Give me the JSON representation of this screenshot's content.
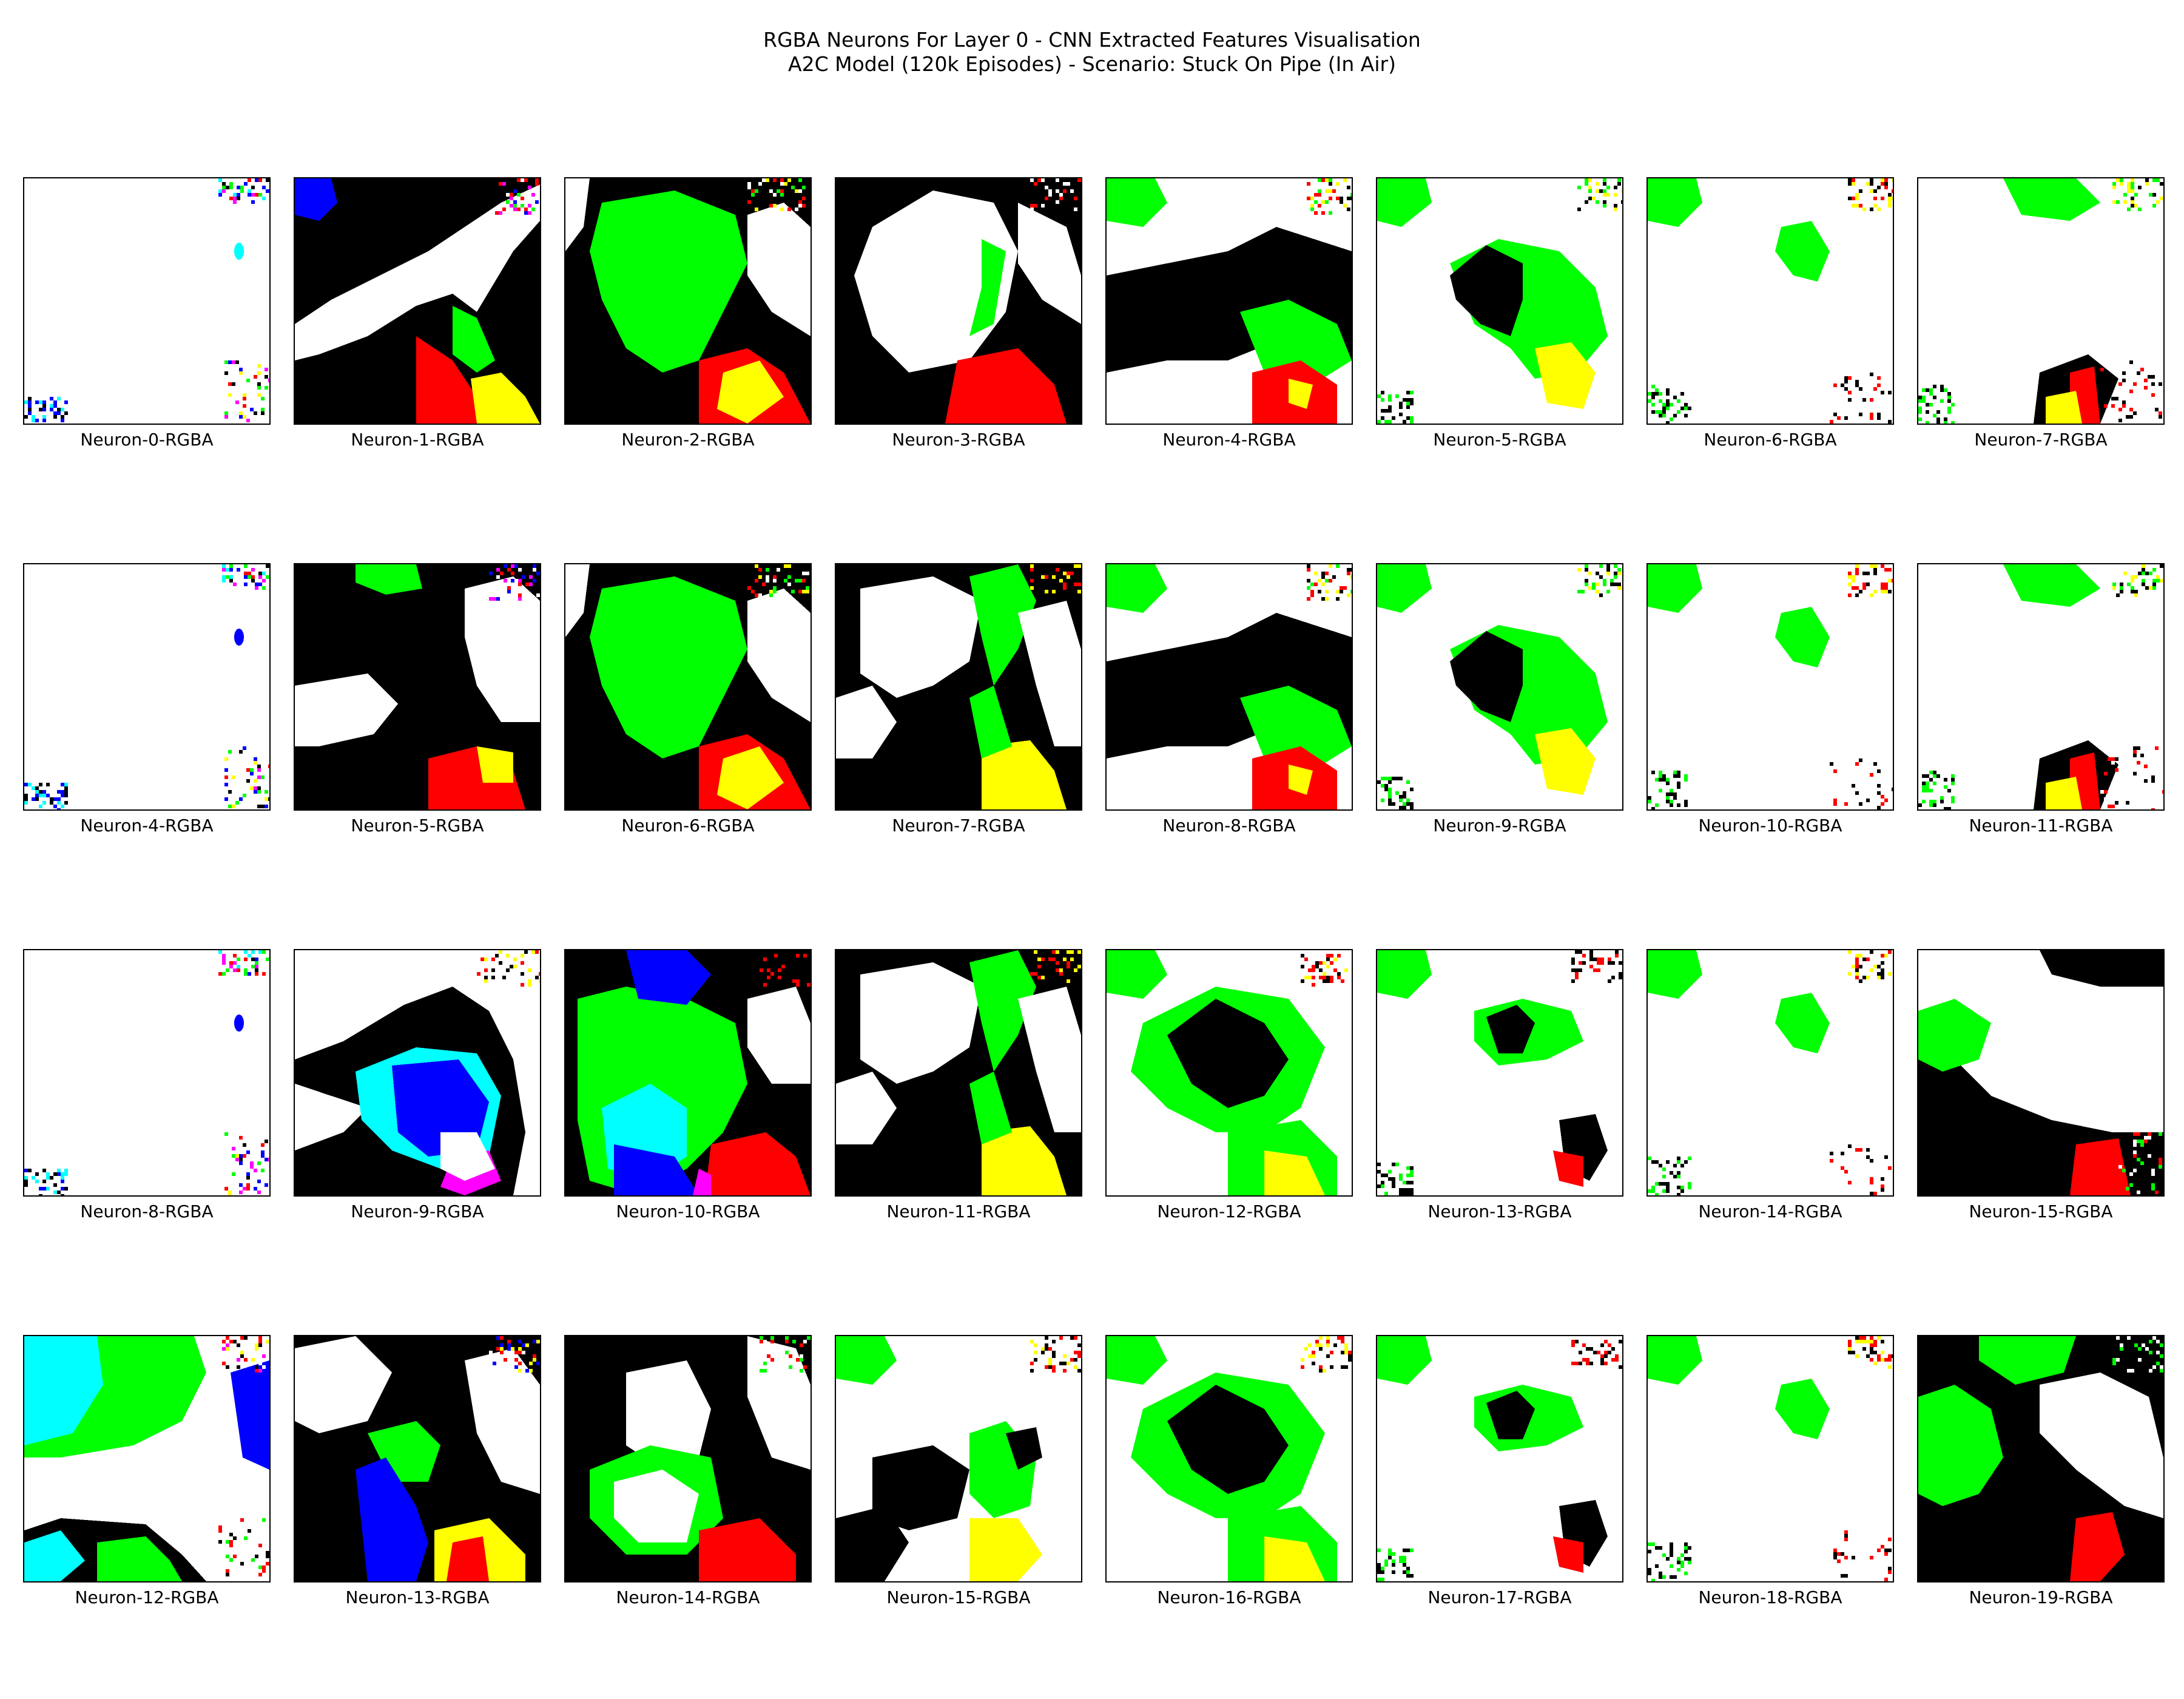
{
  "figure": {
    "title_line1": "RGBA Neurons For Layer 0 - CNN Extracted Features Visualisation",
    "title_line2": "A2C Model (120k Episodes) - Scenario: Stuck On Pipe (In Air)"
  },
  "colors": {
    "white": "#ffffff",
    "black": "#000000",
    "green": "#00ff00",
    "red": "#ff0000",
    "yellow": "#ffff00",
    "blue": "#0000ff",
    "cyan": "#00ffff",
    "magenta": "#ff00ff"
  },
  "panels": [
    {
      "label": "Neuron-0-RGBA",
      "pattern": "sparse-white"
    },
    {
      "label": "Neuron-1-RGBA",
      "pattern": "diagonal-band"
    },
    {
      "label": "Neuron-2-RGBA",
      "pattern": "green-blob"
    },
    {
      "label": "Neuron-3-RGBA",
      "pattern": "white-blob"
    },
    {
      "label": "Neuron-4-RGBA",
      "pattern": "black-band"
    },
    {
      "label": "Neuron-5-RGBA",
      "pattern": "mostly-white-black-center"
    },
    {
      "label": "Neuron-6-RGBA",
      "pattern": "mostly-white"
    },
    {
      "label": "Neuron-7-RGBA",
      "pattern": "mostly-white-bottom-black"
    },
    {
      "label": "Neuron-4-RGBA",
      "pattern": "sparse-white"
    },
    {
      "label": "Neuron-5-RGBA",
      "pattern": "black-white-mix"
    },
    {
      "label": "Neuron-6-RGBA",
      "pattern": "green-blob"
    },
    {
      "label": "Neuron-7-RGBA",
      "pattern": "white-blob-black-frame"
    },
    {
      "label": "Neuron-8-RGBA",
      "pattern": "black-band"
    },
    {
      "label": "Neuron-9-RGBA",
      "pattern": "mostly-white-black-center"
    },
    {
      "label": "Neuron-10-RGBA",
      "pattern": "mostly-white"
    },
    {
      "label": "Neuron-11-RGBA",
      "pattern": "mostly-white-bottom-black"
    },
    {
      "label": "Neuron-8-RGBA",
      "pattern": "sparse-white"
    },
    {
      "label": "Neuron-9-RGBA",
      "pattern": "blue-center"
    },
    {
      "label": "Neuron-10-RGBA",
      "pattern": "green-blue-cyan"
    },
    {
      "label": "Neuron-11-RGBA",
      "pattern": "white-blob-black-frame"
    },
    {
      "label": "Neuron-12-RGBA",
      "pattern": "black-center-green"
    },
    {
      "label": "Neuron-13-RGBA",
      "pattern": "mostly-white-small-black"
    },
    {
      "label": "Neuron-14-RGBA",
      "pattern": "mostly-white"
    },
    {
      "label": "Neuron-15-RGBA",
      "pattern": "black-bottom-left"
    },
    {
      "label": "Neuron-12-RGBA",
      "pattern": "cyan-green-top"
    },
    {
      "label": "Neuron-13-RGBA",
      "pattern": "black-with-blue"
    },
    {
      "label": "Neuron-14-RGBA",
      "pattern": "black-white-top"
    },
    {
      "label": "Neuron-15-RGBA",
      "pattern": "white-black-lower"
    },
    {
      "label": "Neuron-16-RGBA",
      "pattern": "black-center-green"
    },
    {
      "label": "Neuron-17-RGBA",
      "pattern": "mostly-white-small-black"
    },
    {
      "label": "Neuron-18-RGBA",
      "pattern": "mostly-white"
    },
    {
      "label": "Neuron-19-RGBA",
      "pattern": "black-heavy"
    }
  ]
}
